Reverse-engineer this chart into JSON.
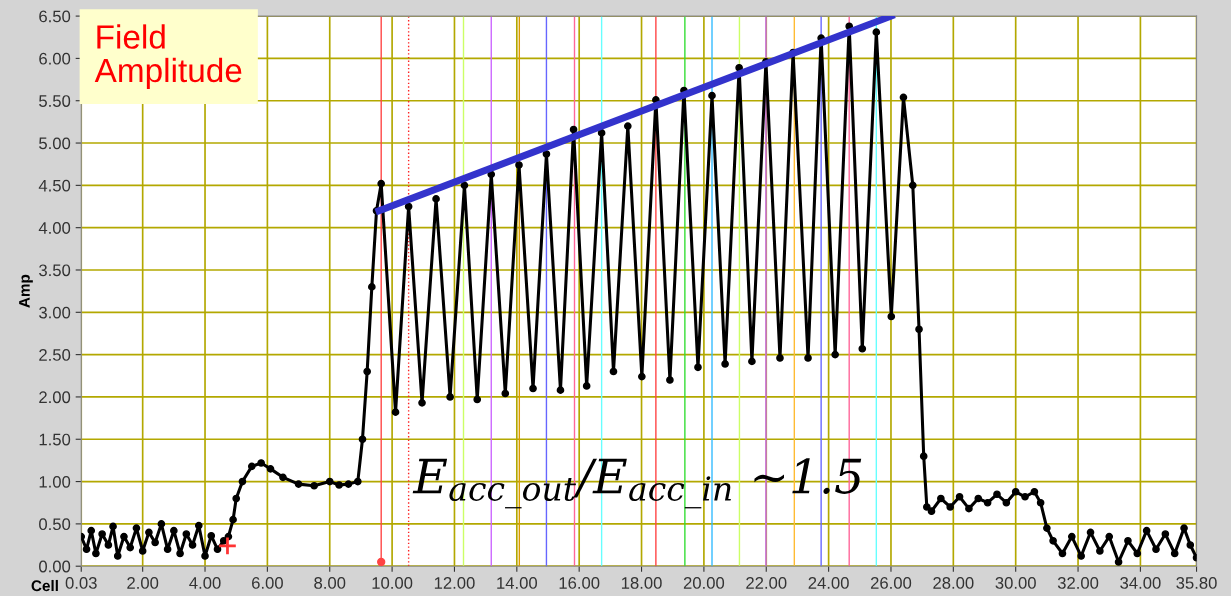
{
  "chart_data": {
    "type": "line",
    "xlabel": "Cell",
    "ylabel": "Amp",
    "annotations": [
      "Field\nAmplitude",
      "E$_{acc_out}$/E$_{acc_in}$ ~1.5"
    ],
    "xlim": [
      0.03,
      35.8
    ],
    "xticks": [
      0.03,
      {
        "value": 2,
        "label": "2.00"
      },
      {
        "value": 4,
        "label": "4.00"
      },
      {
        "value": 6,
        "label": "6.00"
      },
      {
        "value": 8,
        "label": "8.00"
      },
      {
        "value": 10,
        "label": "10.00"
      },
      {
        "value": 12,
        "label": "12.00"
      },
      {
        "value": 14,
        "label": "14.00"
      },
      {
        "value": 16,
        "label": "16.00"
      },
      {
        "value": 18,
        "label": "18.00"
      },
      {
        "value": 20,
        "label": "20.00"
      },
      {
        "value": 22,
        "label": "22.00"
      },
      {
        "value": 24,
        "label": "24.00"
      },
      {
        "value": 26,
        "label": "26.00"
      },
      {
        "value": 28,
        "label": "28.00"
      },
      {
        "value": 30,
        "label": "30.00"
      },
      {
        "value": 32,
        "label": "32.00"
      },
      {
        "value": 34,
        "label": "34.00"
      },
      {
        "value": 35.8,
        "label": "35.80"
      }
    ],
    "ylim": [
      0,
      6.5
    ],
    "yticks": [
      {
        "value": 0,
        "label": "0.00"
      },
      {
        "value": 0.5,
        "label": "0.50"
      },
      {
        "value": 1,
        "label": "1.00"
      },
      {
        "value": 1.5,
        "label": "1.50"
      },
      {
        "value": 2,
        "label": "2.00"
      },
      {
        "value": 2.5,
        "label": "2.50"
      },
      {
        "value": 3,
        "label": "3.00"
      },
      {
        "value": 3.5,
        "label": "3.50"
      },
      {
        "value": 4,
        "label": "4.00"
      },
      {
        "value": 4.5,
        "label": "4.50"
      },
      {
        "value": 5,
        "label": "5.00"
      },
      {
        "value": 5.5,
        "label": "5.50"
      },
      {
        "value": 6,
        "label": "6.00"
      },
      {
        "value": 6.5,
        "label": "6.50"
      }
    ],
    "grid": true,
    "legend": false,
    "series": [
      {
        "color": "#000000",
        "marker": "circle",
        "x": [
          0.03,
          0.2,
          0.35,
          0.5,
          0.7,
          0.9,
          1.05,
          1.2,
          1.4,
          1.6,
          1.8,
          2.0,
          2.2,
          2.4,
          2.6,
          2.8,
          3.0,
          3.2,
          3.4,
          3.6,
          3.8,
          4.0,
          4.2,
          4.4,
          4.6,
          4.75,
          4.9,
          5.0,
          5.2,
          5.5,
          5.8,
          6.1,
          6.5,
          7.0,
          7.5,
          8.0,
          8.3,
          8.6,
          8.9,
          9.05,
          9.2,
          9.35,
          9.5,
          9.65,
          10.11,
          10.53,
          10.96,
          11.41,
          11.86,
          12.32,
          12.73,
          13.18,
          13.63,
          14.07,
          14.52,
          14.95,
          15.4,
          15.82,
          16.24,
          16.72,
          17.1,
          17.56,
          18.01,
          18.46,
          18.91,
          19.36,
          19.81,
          20.26,
          20.68,
          21.13,
          21.54,
          21.99,
          22.44,
          22.86,
          23.34,
          23.76,
          24.21,
          24.66,
          25.08,
          25.53,
          26.01,
          26.4,
          26.7,
          26.9,
          27.05,
          27.15,
          27.3,
          27.6,
          27.9,
          28.2,
          28.5,
          28.8,
          29.1,
          29.4,
          29.7,
          30.0,
          30.3,
          30.6,
          30.8,
          31.0,
          31.2,
          31.5,
          31.8,
          32.1,
          32.4,
          32.7,
          33.0,
          33.3,
          33.6,
          33.9,
          34.2,
          34.5,
          34.8,
          35.1,
          35.4,
          35.6,
          35.8
        ],
        "values": [
          0.35,
          0.2,
          0.42,
          0.15,
          0.38,
          0.25,
          0.47,
          0.12,
          0.35,
          0.22,
          0.45,
          0.18,
          0.4,
          0.28,
          0.5,
          0.2,
          0.42,
          0.15,
          0.38,
          0.25,
          0.48,
          0.12,
          0.36,
          0.2,
          0.3,
          0.35,
          0.55,
          0.8,
          1.0,
          1.18,
          1.22,
          1.15,
          1.05,
          0.97,
          0.95,
          1.0,
          0.96,
          0.97,
          1.0,
          1.5,
          2.3,
          3.3,
          4.2,
          4.52,
          1.82,
          4.25,
          1.93,
          4.34,
          2.0,
          4.5,
          1.97,
          4.63,
          2.04,
          4.74,
          2.1,
          4.87,
          2.08,
          5.16,
          2.13,
          5.12,
          2.3,
          5.2,
          2.24,
          5.51,
          2.2,
          5.62,
          2.35,
          5.56,
          2.39,
          5.89,
          2.42,
          5.96,
          2.46,
          6.07,
          2.46,
          6.24,
          2.5,
          6.38,
          2.57,
          6.31,
          2.95,
          5.54,
          4.5,
          2.8,
          1.3,
          0.7,
          0.65,
          0.8,
          0.7,
          0.82,
          0.68,
          0.8,
          0.75,
          0.85,
          0.75,
          0.88,
          0.82,
          0.88,
          0.75,
          0.45,
          0.3,
          0.15,
          0.35,
          0.12,
          0.4,
          0.18,
          0.35,
          0.05,
          0.3,
          0.15,
          0.42,
          0.2,
          0.38,
          0.15,
          0.45,
          0.25,
          0.1
        ]
      },
      {
        "type": "line",
        "color": "#3333cc",
        "marker": "none",
        "x": [
          9.58,
          26.01
        ],
        "values": [
          4.2,
          6.5
        ]
      }
    ],
    "ref_lines": [
      {
        "axis": "x",
        "value": 9.65,
        "color": "#ff4444",
        "line_style": "solid"
      },
      {
        "axis": "x",
        "value": 10.53,
        "color": "#ff2222",
        "line_style": "dotted"
      },
      {
        "axis": "x",
        "value": 12.29,
        "color": "#ccff66",
        "line_style": "solid"
      },
      {
        "axis": "x",
        "value": 13.18,
        "color": "#cc66ff",
        "line_style": "solid"
      },
      {
        "axis": "x",
        "value": 14.08,
        "color": "#dd9900",
        "line_style": "solid"
      },
      {
        "axis": "x",
        "value": 14.95,
        "color": "#6666ff",
        "line_style": "solid"
      },
      {
        "axis": "x",
        "value": 15.85,
        "color": "#ff6699",
        "line_style": "solid"
      },
      {
        "axis": "x",
        "value": 16.72,
        "color": "#66ffff",
        "line_style": "solid"
      },
      {
        "axis": "x",
        "value": 18.46,
        "color": "#ff4444",
        "line_style": "solid"
      },
      {
        "axis": "x",
        "value": 19.39,
        "color": "#33dd33",
        "line_style": "solid"
      },
      {
        "axis": "x",
        "value": 20.26,
        "color": "#33bbff",
        "line_style": "solid"
      },
      {
        "axis": "x",
        "value": 21.14,
        "color": "#ccff66",
        "line_style": "solid"
      },
      {
        "axis": "x",
        "value": 21.99,
        "color": "#cc66ff",
        "line_style": "solid"
      },
      {
        "axis": "x",
        "value": 22.9,
        "color": "#ffbb33",
        "line_style": "solid"
      },
      {
        "axis": "x",
        "value": 23.76,
        "color": "#6666ff",
        "line_style": "solid"
      },
      {
        "axis": "x",
        "value": 24.66,
        "color": "#ff6699",
        "line_style": "solid"
      },
      {
        "axis": "x",
        "value": 25.53,
        "color": "#66ffff",
        "line_style": "solid"
      }
    ]
  }
}
